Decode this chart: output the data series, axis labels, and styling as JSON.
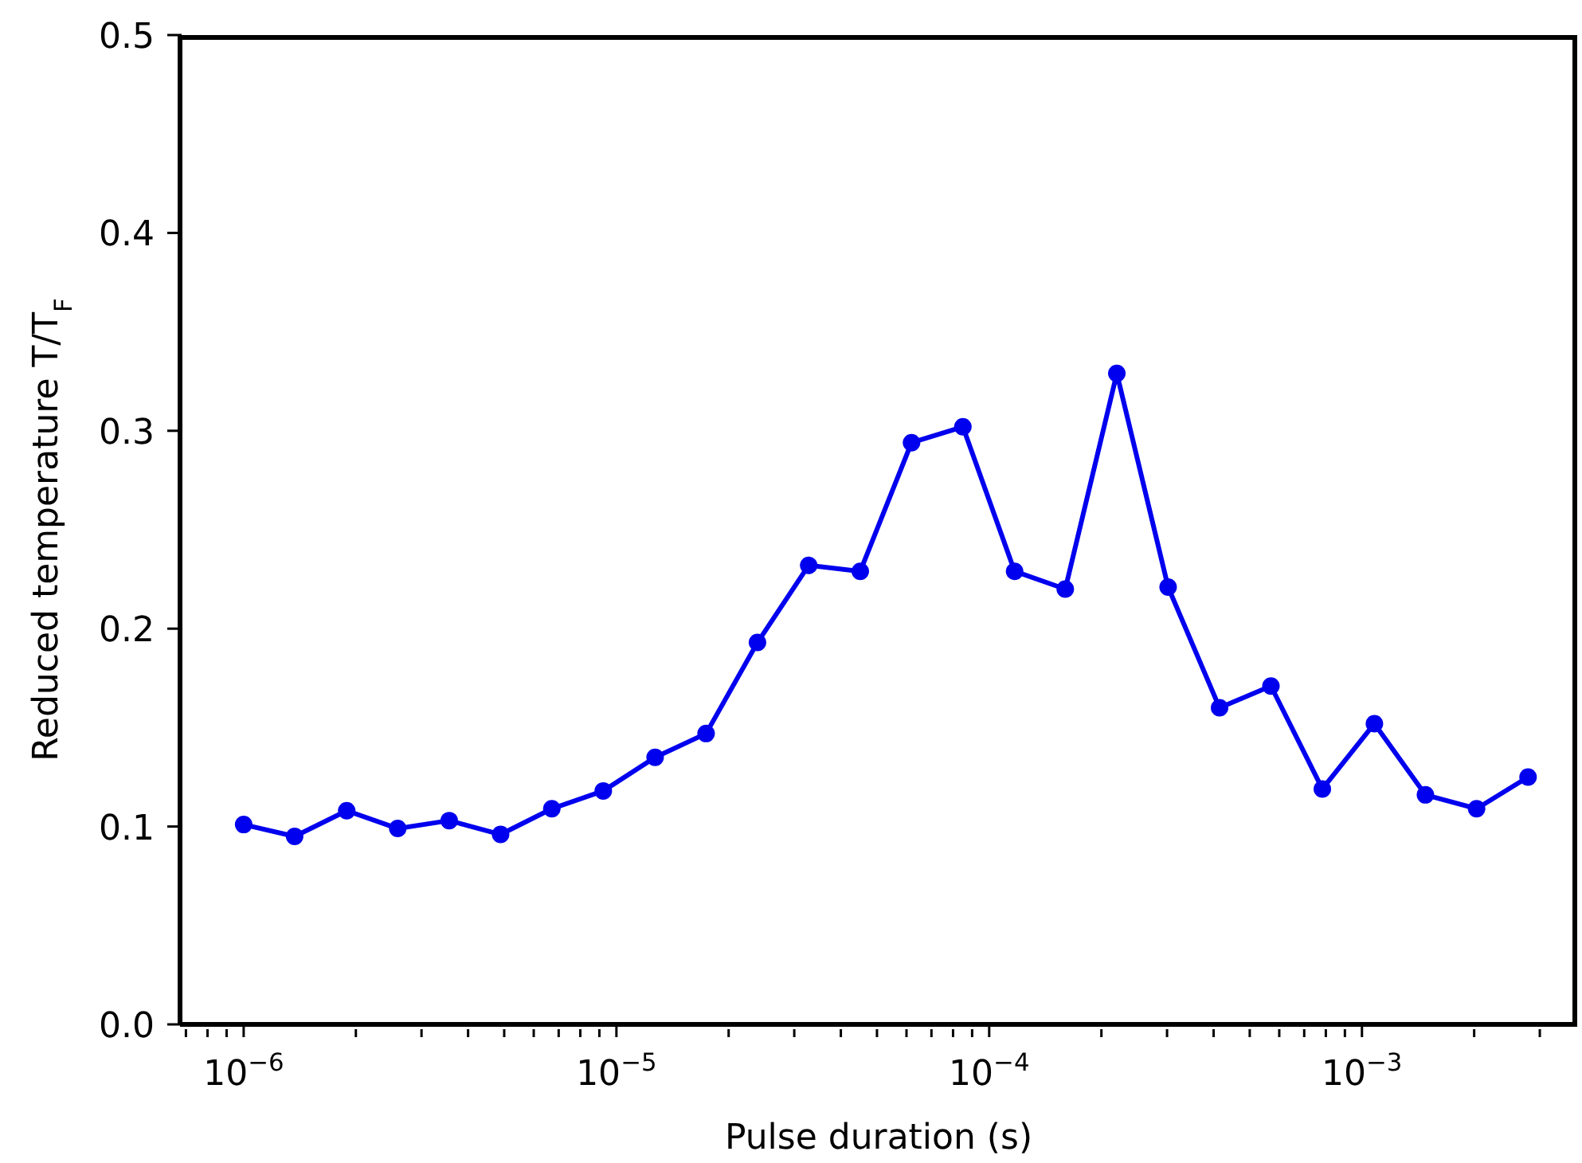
{
  "chart_data": {
    "type": "line",
    "xlabel": "Pulse duration (s)",
    "ylabel": "Reduced temperature T/T$_{F}$",
    "x": [
      1e-06,
      1.37e-06,
      1.89e-06,
      2.59e-06,
      3.56e-06,
      4.89e-06,
      6.71e-06,
      9.22e-06,
      1.27e-05,
      1.74e-05,
      2.39e-05,
      3.28e-05,
      4.51e-05,
      6.19e-05,
      8.5e-05,
      0.000117,
      0.00016,
      0.00022,
      0.000302,
      0.000415,
      0.00057,
      0.000783,
      0.00108,
      0.00148,
      0.00203,
      0.00279
    ],
    "series": [
      {
        "color": "#0000ee",
        "values": [
          0.101,
          0.095,
          0.108,
          0.099,
          0.103,
          0.096,
          0.109,
          0.118,
          0.135,
          0.147,
          0.193,
          0.232,
          0.229,
          0.294,
          0.302,
          0.229,
          0.22,
          0.329,
          0.221,
          0.16,
          0.171,
          0.119,
          0.152,
          0.116,
          0.109,
          0.125
        ]
      }
    ],
    "log": "x",
    "marker": "circle",
    "line_style": "solid",
    "grid": false,
    "legend": false,
    "xlim": [
      6.75e-07,
      0.00378
    ],
    "xticks": [
      {
        "value": 7e-07,
        "label": null
      },
      {
        "value": 8e-07,
        "label": null
      },
      {
        "value": 9e-07,
        "label": null
      },
      {
        "value": 1e-06,
        "label": "10$^{−6}$"
      },
      {
        "value": 2e-06,
        "label": null
      },
      {
        "value": 3e-06,
        "label": null
      },
      {
        "value": 4e-06,
        "label": null
      },
      {
        "value": 5e-06,
        "label": null
      },
      {
        "value": 6e-06,
        "label": null
      },
      {
        "value": 7e-06,
        "label": null
      },
      {
        "value": 8e-06,
        "label": null
      },
      {
        "value": 9e-06,
        "label": null
      },
      {
        "value": 1e-05,
        "label": "10$^{−5}$"
      },
      {
        "value": 2e-05,
        "label": null
      },
      {
        "value": 3e-05,
        "label": null
      },
      {
        "value": 4e-05,
        "label": null
      },
      {
        "value": 5e-05,
        "label": null
      },
      {
        "value": 6e-05,
        "label": null
      },
      {
        "value": 7e-05,
        "label": null
      },
      {
        "value": 8e-05,
        "label": null
      },
      {
        "value": 9e-05,
        "label": null
      },
      {
        "value": 0.0001,
        "label": "10$^{−4}$"
      },
      {
        "value": 0.0002,
        "label": null
      },
      {
        "value": 0.0003,
        "label": null
      },
      {
        "value": 0.0004,
        "label": null
      },
      {
        "value": 0.0005,
        "label": null
      },
      {
        "value": 0.0006,
        "label": null
      },
      {
        "value": 0.0007,
        "label": null
      },
      {
        "value": 0.0008,
        "label": null
      },
      {
        "value": 0.0009,
        "label": null
      },
      {
        "value": 0.001,
        "label": "10$^{−3}$"
      },
      {
        "value": 0.002,
        "label": null
      },
      {
        "value": 0.003,
        "label": null
      }
    ],
    "ylim": [
      0,
      0.5
    ],
    "yticks": [
      {
        "value": 0,
        "label": "0.0"
      },
      0.1,
      0.2,
      0.3,
      0.4,
      0.5
    ]
  }
}
